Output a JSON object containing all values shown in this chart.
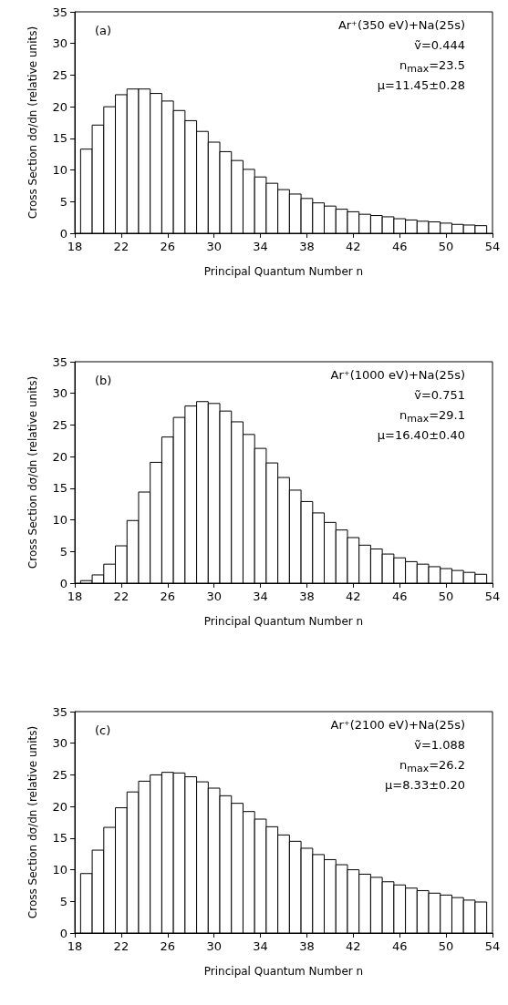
{
  "chart_data": [
    {
      "type": "histogram",
      "xlabel": "Principal Quantum Number n",
      "ylabel": "Cross Section dσ/dn (relative units)",
      "annotations": [
        "(a)",
        "Ar⁺(350 eV)+Na(25s)",
        "ṽ=0.444",
        "n$_{max}$=23.5",
        "μ=11.45±0.28"
      ],
      "bins": [
        18.5,
        19.5,
        20.5,
        21.5,
        22.5,
        23.5,
        24.5,
        25.5,
        26.5,
        27.5,
        28.5,
        29.5,
        30.5,
        31.5,
        32.5,
        33.5,
        34.5,
        35.5,
        36.5,
        37.5,
        38.5,
        39.5,
        40.5,
        41.5,
        42.5,
        43.5,
        44.5,
        45.5,
        46.5,
        47.5,
        48.5,
        49.5,
        50.5,
        51.5,
        52.5,
        53.5
      ],
      "values": [
        13.3,
        17.1,
        20.0,
        21.9,
        22.8,
        22.8,
        22.1,
        20.9,
        19.4,
        17.8,
        16.1,
        14.4,
        12.9,
        11.5,
        10.1,
        8.9,
        7.9,
        6.9,
        6.2,
        5.5,
        4.8,
        4.3,
        3.8,
        3.4,
        3.0,
        2.8,
        2.6,
        2.3,
        2.1,
        1.9,
        1.8,
        1.6,
        1.4,
        1.3,
        1.2
      ],
      "xlim": [
        18,
        54
      ],
      "xticks": [
        18,
        22,
        26,
        30,
        34,
        38,
        42,
        46,
        50,
        54
      ],
      "ylim": [
        0,
        35
      ],
      "yticks": [
        0,
        5,
        10,
        15,
        20,
        25,
        30,
        35
      ]
    },
    {
      "type": "histogram",
      "xlabel": "Principal Quantum Number n",
      "ylabel": "Cross Section dσ/dn (relative units)",
      "annotations": [
        "(b)",
        "Ar⁺(1000 eV)+Na(25s)",
        "ṽ=0.751",
        "n$_{max}$=29.1",
        "μ=16.40±0.40"
      ],
      "bins": [
        18.5,
        19.5,
        20.5,
        21.5,
        22.5,
        23.5,
        24.5,
        25.5,
        26.5,
        27.5,
        28.5,
        29.5,
        30.5,
        31.5,
        32.5,
        33.5,
        34.5,
        35.5,
        36.5,
        37.5,
        38.5,
        39.5,
        40.5,
        41.5,
        42.5,
        43.5,
        44.5,
        45.5,
        46.5,
        47.5,
        48.5,
        49.5,
        50.5,
        51.5,
        52.5,
        53.5
      ],
      "values": [
        0.4,
        1.3,
        3.0,
        5.9,
        9.9,
        14.4,
        19.1,
        23.1,
        26.2,
        28.0,
        28.7,
        28.4,
        27.2,
        25.5,
        23.5,
        21.3,
        19.0,
        16.7,
        14.7,
        12.9,
        11.1,
        9.6,
        8.4,
        7.2,
        6.0,
        5.4,
        4.6,
        4.0,
        3.4,
        3.0,
        2.6,
        2.3,
        2.0,
        1.7,
        1.4
      ],
      "xlim": [
        18,
        54
      ],
      "xticks": [
        18,
        22,
        26,
        30,
        34,
        38,
        42,
        46,
        50,
        54
      ],
      "ylim": [
        0,
        35
      ],
      "yticks": [
        0,
        5,
        10,
        15,
        20,
        25,
        30,
        35
      ]
    },
    {
      "type": "histogram",
      "xlabel": "Principal Quantum Number n",
      "ylabel": "Cross Section dσ/dn (relative units)",
      "annotations": [
        "(c)",
        "Ar⁺(2100 eV)+Na(25s)",
        "ṽ=1.088",
        "n$_{max}$=26.2",
        "μ=8.33±0.20"
      ],
      "bins": [
        18.5,
        19.5,
        20.5,
        21.5,
        22.5,
        23.5,
        24.5,
        25.5,
        26.5,
        27.5,
        28.5,
        29.5,
        30.5,
        31.5,
        32.5,
        33.5,
        34.5,
        35.5,
        36.5,
        37.5,
        38.5,
        39.5,
        40.5,
        41.5,
        42.5,
        43.5,
        44.5,
        45.5,
        46.5,
        47.5,
        48.5,
        49.5,
        50.5,
        51.5,
        52.5,
        53.5
      ],
      "values": [
        9.4,
        13.1,
        16.7,
        19.8,
        22.3,
        24.0,
        25.0,
        25.4,
        25.3,
        24.7,
        23.9,
        22.9,
        21.7,
        20.5,
        19.2,
        18.0,
        16.8,
        15.5,
        14.5,
        13.4,
        12.4,
        11.6,
        10.8,
        10.0,
        9.3,
        8.8,
        8.1,
        7.6,
        7.1,
        6.7,
        6.3,
        6.0,
        5.6,
        5.2,
        4.9
      ],
      "xlim": [
        18,
        54
      ],
      "xticks": [
        18,
        22,
        26,
        30,
        34,
        38,
        42,
        46,
        50,
        54
      ],
      "ylim": [
        0,
        35
      ],
      "yticks": [
        0,
        5,
        10,
        15,
        20,
        25,
        30,
        35
      ]
    }
  ]
}
